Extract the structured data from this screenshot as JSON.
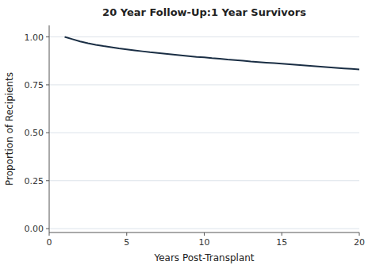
{
  "chart_data": {
    "type": "line",
    "title": "20 Year Follow-Up:1 Year Survivors",
    "x_label": "Years Post-Transplant",
    "y_label": "Proportion of Recipients",
    "x": [
      1.0,
      1.5,
      2.0,
      2.5,
      3.0,
      3.5,
      4.0,
      4.5,
      5.0,
      5.5,
      6.0,
      6.5,
      7.0,
      7.5,
      8.0,
      8.5,
      9.0,
      9.5,
      10.0,
      10.5,
      11.0,
      11.5,
      12.0,
      12.5,
      13.0,
      13.5,
      14.0,
      14.5,
      15.0,
      15.5,
      16.0,
      16.5,
      17.0,
      17.5,
      18.0,
      18.5,
      19.0,
      19.5,
      20.0
    ],
    "values": [
      1.0,
      0.988,
      0.976,
      0.967,
      0.959,
      0.952,
      0.946,
      0.94,
      0.935,
      0.93,
      0.925,
      0.92,
      0.916,
      0.912,
      0.908,
      0.904,
      0.9,
      0.896,
      0.893,
      0.889,
      0.886,
      0.882,
      0.879,
      0.876,
      0.872,
      0.869,
      0.866,
      0.863,
      0.86,
      0.857,
      0.854,
      0.851,
      0.848,
      0.845,
      0.842,
      0.839,
      0.836,
      0.833,
      0.83
    ],
    "color": "#1a2e44",
    "xlim": [
      0,
      20
    ],
    "ylim": [
      -0.02,
      1.06
    ],
    "xticks": [
      0,
      5,
      10,
      15,
      20
    ],
    "yticks": [
      {
        "value": 0,
        "label": "0.00"
      },
      0.25,
      {
        "value": 0.5,
        "label": "0.50"
      },
      0.75,
      {
        "value": 1,
        "label": "1.00"
      }
    ],
    "grid": true
  }
}
